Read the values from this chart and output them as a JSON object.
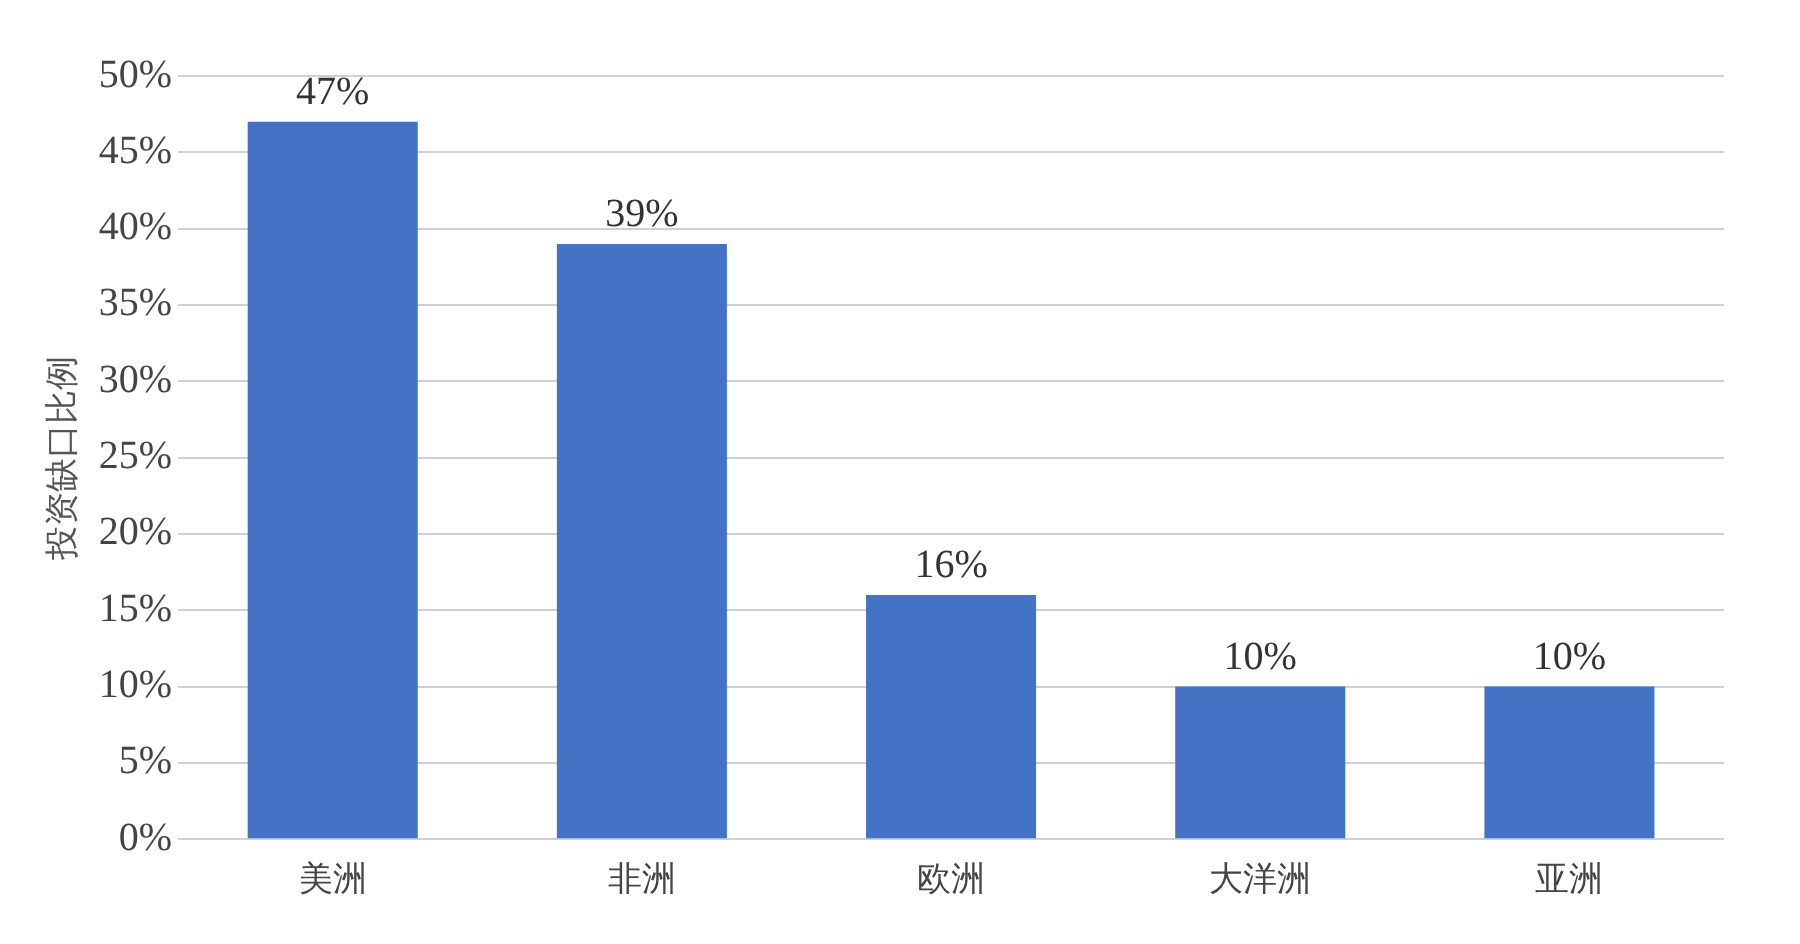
{
  "chart_data": {
    "type": "bar",
    "ylabel": "投资缺口比例",
    "categories": [
      "美洲",
      "非洲",
      "欧洲",
      "大洋洲",
      "亚洲"
    ],
    "values": [
      47,
      39,
      16,
      10,
      10
    ],
    "value_labels": [
      "47%",
      "39%",
      "16%",
      "10%",
      "10%"
    ],
    "color": "#4472c4",
    "ylim": [
      0,
      50
    ],
    "yticks": [
      {
        "value": 0,
        "label": "0%"
      },
      {
        "value": 5,
        "label": "5%"
      },
      {
        "value": 10,
        "label": "10%"
      },
      {
        "value": 15,
        "label": "15%"
      },
      {
        "value": 20,
        "label": "20%"
      },
      {
        "value": 25,
        "label": "25%"
      },
      {
        "value": 30,
        "label": "30%"
      },
      {
        "value": 35,
        "label": "35%"
      },
      {
        "value": 40,
        "label": "40%"
      },
      {
        "value": 45,
        "label": "45%"
      },
      {
        "value": 50,
        "label": "50%"
      }
    ],
    "grid": "y"
  }
}
